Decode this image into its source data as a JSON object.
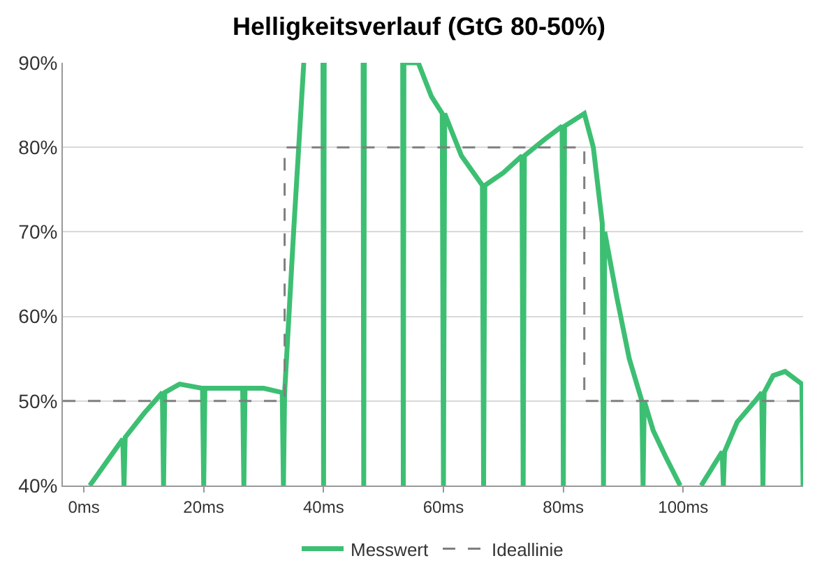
{
  "chart_data": {
    "type": "line",
    "title": "Helligkeitsverlauf (GtG 80-50%)",
    "xlim": [
      -3.5,
      120
    ],
    "xticks": [
      {
        "value": 0,
        "label": "0ms"
      },
      {
        "value": 20,
        "label": "20ms"
      },
      {
        "value": 40,
        "label": "40ms"
      },
      {
        "value": 60,
        "label": "60ms"
      },
      {
        "value": 80,
        "label": "80ms"
      },
      {
        "value": 100,
        "label": "100ms"
      }
    ],
    "ylim": [
      40,
      90
    ],
    "yticks": [
      {
        "value": 40,
        "label": "40%"
      },
      {
        "value": 50,
        "label": "50%"
      },
      {
        "value": 60,
        "label": "60%"
      },
      {
        "value": 70,
        "label": "70%"
      },
      {
        "value": 80,
        "label": "80%"
      },
      {
        "value": 90,
        "label": "90%"
      }
    ],
    "grid": "y",
    "legend": "bottom",
    "series": [
      {
        "name": "Messwert",
        "color": "#3dbf73",
        "line_style": "solid",
        "x": [
          1,
          4,
          6.5,
          6.7,
          6.9,
          10,
          13.1,
          13.3,
          13.5,
          16,
          19.8,
          20,
          20.2,
          24,
          26.5,
          26.7,
          26.9,
          30,
          33.1,
          33.3,
          33.5,
          35,
          36.7,
          38,
          39.9,
          40,
          40.1,
          43,
          46.6,
          46.7,
          46.8,
          50,
          53.2,
          53.3,
          53.4,
          55.8,
          58,
          59.8,
          60,
          60.2,
          63,
          66.5,
          66.7,
          66.9,
          70,
          73.1,
          73.3,
          73.5,
          77,
          79.8,
          80,
          80.2,
          83.5,
          85,
          86.5,
          86.7,
          86.9,
          89,
          91,
          93.1,
          93.3,
          93.5,
          95,
          97,
          99.5,
          101,
          103,
          106.5,
          106.7,
          106.9,
          109,
          112,
          113.1,
          113.3,
          113.5,
          115,
          117,
          119.8,
          120
        ],
        "values": [
          40,
          43,
          45.5,
          40,
          45.7,
          48.5,
          51,
          40,
          51,
          52,
          51.5,
          40,
          51.5,
          51.5,
          51.5,
          40,
          51.5,
          51.5,
          51,
          40,
          51,
          70,
          90,
          null,
          90,
          40,
          90,
          null,
          90,
          40,
          90,
          null,
          90,
          40,
          90,
          90,
          86,
          84,
          40,
          84,
          79,
          75.5,
          40,
          75.5,
          77,
          79,
          40,
          79,
          81,
          82.5,
          40,
          82.5,
          84,
          80,
          71,
          40,
          70,
          62,
          55,
          50,
          40,
          50,
          46.5,
          43.5,
          40,
          null,
          40,
          44,
          40,
          44,
          47.5,
          50,
          51,
          40,
          51,
          53,
          53.5,
          52,
          40
        ]
      },
      {
        "name": "Ideallinie",
        "color": "#7f7f7f",
        "line_style": "dashed",
        "x": [
          -3.5,
          33.5,
          33.5,
          83.5,
          83.5,
          120
        ],
        "values": [
          50,
          50,
          80,
          80,
          50,
          50
        ]
      }
    ]
  }
}
